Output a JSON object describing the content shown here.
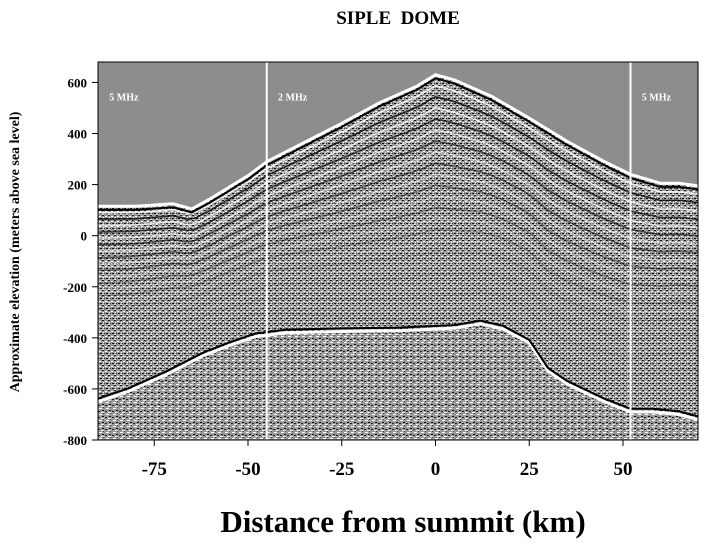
{
  "chart_data": {
    "type": "image",
    "title": "SIPLE  DOME",
    "xlabel": "Distance from summit (km)",
    "ylabel": "Approximate elevation (meters above sea level)",
    "xlim": [
      -90,
      70
    ],
    "ylim": [
      -800,
      680
    ],
    "xticks": [
      -75,
      -50,
      -25,
      0,
      25,
      50
    ],
    "yticks": [
      600,
      400,
      200,
      0,
      -200,
      -400,
      -600,
      -800
    ],
    "band_boundaries_km": [
      -45,
      52
    ],
    "band_labels": [
      {
        "text": "5 MHz",
        "x": -87,
        "y": 530
      },
      {
        "text": "2 MHz",
        "x": -42,
        "y": 530
      },
      {
        "text": "5 MHz",
        "x": 55,
        "y": 530
      }
    ],
    "surface_profile": [
      [
        -90,
        115
      ],
      [
        -80,
        115
      ],
      [
        -70,
        125
      ],
      [
        -65,
        105
      ],
      [
        -60,
        145
      ],
      [
        -50,
        235
      ],
      [
        -45,
        290
      ],
      [
        -35,
        365
      ],
      [
        -25,
        440
      ],
      [
        -15,
        520
      ],
      [
        -5,
        585
      ],
      [
        0,
        630
      ],
      [
        5,
        610
      ],
      [
        15,
        545
      ],
      [
        25,
        460
      ],
      [
        35,
        370
      ],
      [
        45,
        290
      ],
      [
        52,
        240
      ],
      [
        60,
        205
      ],
      [
        65,
        205
      ],
      [
        70,
        195
      ]
    ],
    "bed_profile": [
      [
        -90,
        -650
      ],
      [
        -82,
        -610
      ],
      [
        -72,
        -545
      ],
      [
        -62,
        -470
      ],
      [
        -55,
        -430
      ],
      [
        -48,
        -395
      ],
      [
        -40,
        -380
      ],
      [
        -25,
        -375
      ],
      [
        -10,
        -372
      ],
      [
        5,
        -362
      ],
      [
        12,
        -345
      ],
      [
        18,
        -365
      ],
      [
        25,
        -420
      ],
      [
        30,
        -530
      ],
      [
        35,
        -580
      ],
      [
        45,
        -650
      ],
      [
        52,
        -690
      ],
      [
        58,
        -690
      ],
      [
        65,
        -700
      ],
      [
        70,
        -720
      ]
    ],
    "colors": {
      "background_gray": "#8d8d8d",
      "boundary_line": "#ffffff",
      "axis": "#000000"
    }
  }
}
